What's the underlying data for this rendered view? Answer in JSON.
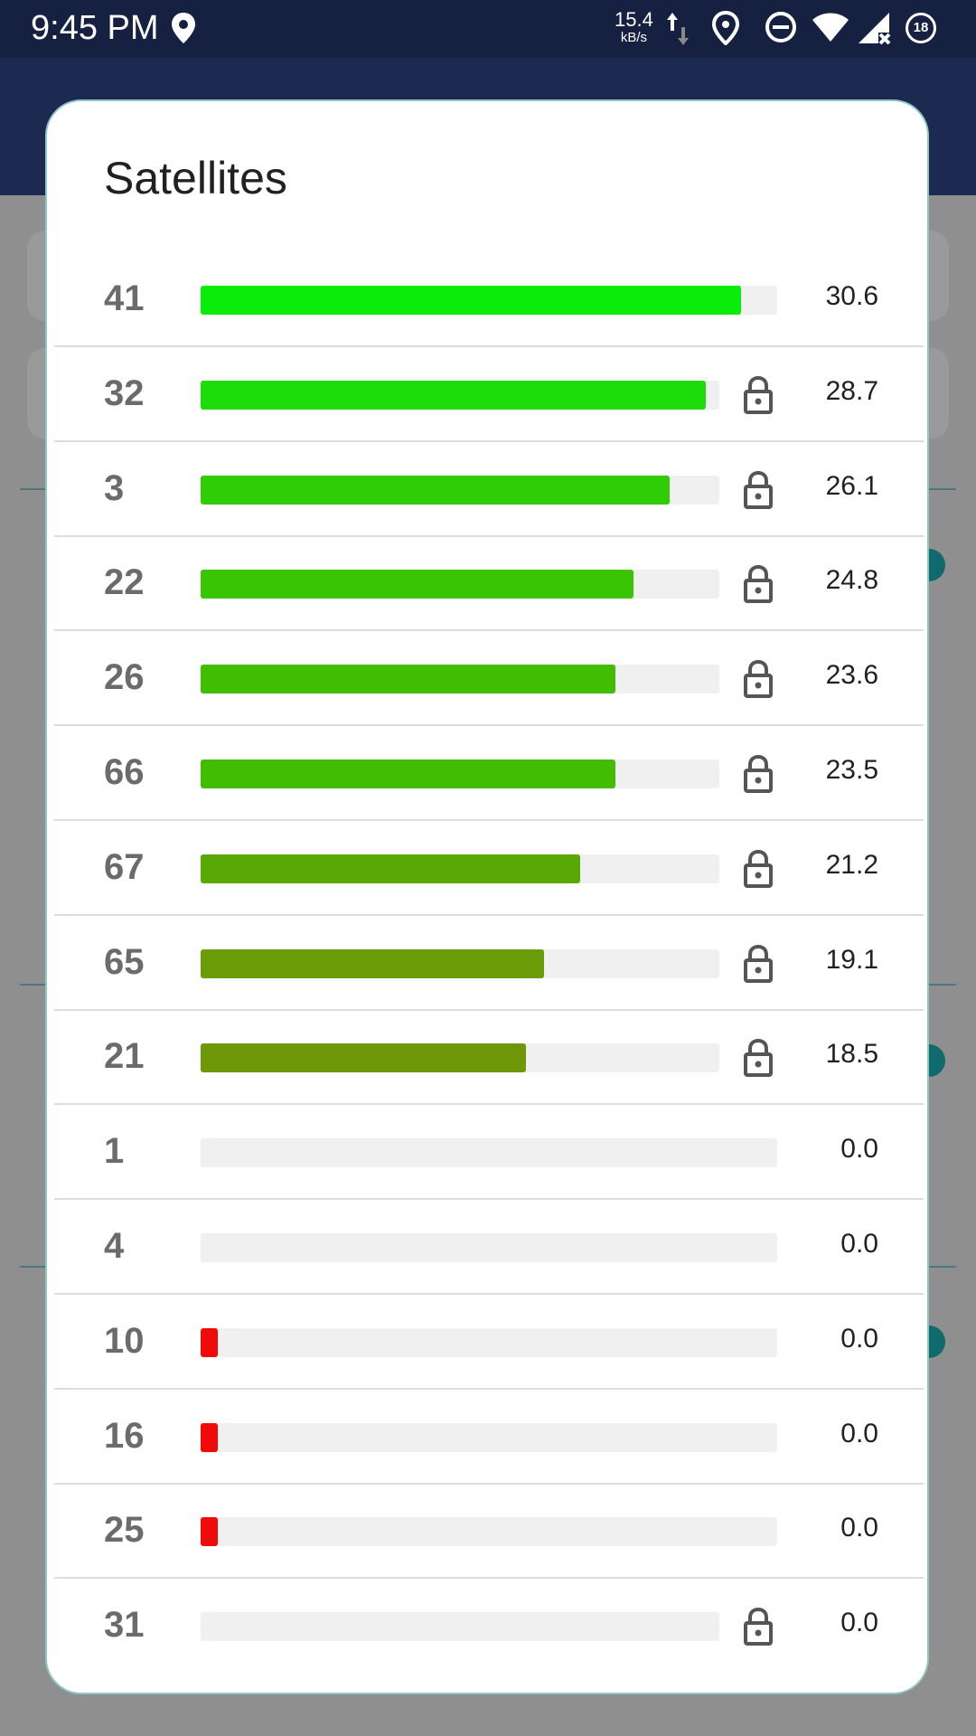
{
  "status_bar": {
    "time": "9:45 PM",
    "speed_value": "15.4",
    "speed_unit": "kB/s",
    "battery": "18"
  },
  "dialog": {
    "title": "Satellites",
    "satellites": [
      {
        "prn": "41",
        "snr": "30.6",
        "level": 0.938,
        "locked": false,
        "color": "#0aec0a"
      },
      {
        "prn": "32",
        "snr": "28.7",
        "level": 0.876,
        "locked": true,
        "color": "#1edc0a"
      },
      {
        "prn": "3",
        "snr": "26.1",
        "level": 0.814,
        "locked": true,
        "color": "#2fcd06"
      },
      {
        "prn": "22",
        "snr": "24.8",
        "level": 0.751,
        "locked": true,
        "color": "#39c404"
      },
      {
        "prn": "26",
        "snr": "23.6",
        "level": 0.719,
        "locked": true,
        "color": "#41bd04"
      },
      {
        "prn": "66",
        "snr": "23.5",
        "level": 0.719,
        "locked": true,
        "color": "#41bd04"
      },
      {
        "prn": "67",
        "snr": "21.2",
        "level": 0.658,
        "locked": true,
        "color": "#58a806"
      },
      {
        "prn": "65",
        "snr": "19.1",
        "level": 0.596,
        "locked": true,
        "color": "#6a9c07"
      },
      {
        "prn": "21",
        "snr": "18.5",
        "level": 0.564,
        "locked": true,
        "color": "#6e9808"
      },
      {
        "prn": "1",
        "snr": "0.0",
        "level": 0,
        "locked": false,
        "color": "#f00a0a"
      },
      {
        "prn": "4",
        "snr": "0.0",
        "level": 0,
        "locked": false,
        "color": "#f00a0a"
      },
      {
        "prn": "10",
        "snr": "0.0",
        "level": 0.03,
        "locked": false,
        "color": "#f00a0a"
      },
      {
        "prn": "16",
        "snr": "0.0",
        "level": 0.03,
        "locked": false,
        "color": "#f00a0a"
      },
      {
        "prn": "25",
        "snr": "0.0",
        "level": 0.03,
        "locked": false,
        "color": "#f00a0a"
      },
      {
        "prn": "31",
        "snr": "0.0",
        "level": 0,
        "locked": true,
        "color": "#f00a0a"
      }
    ]
  }
}
